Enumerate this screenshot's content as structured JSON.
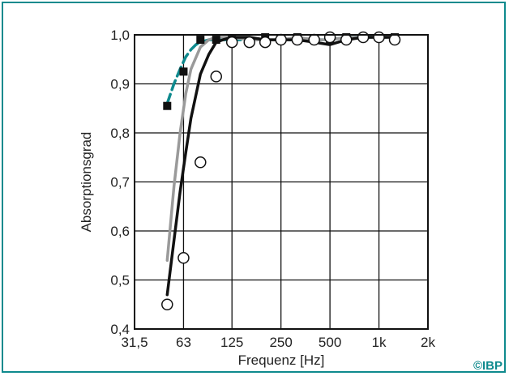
{
  "chart_data": {
    "type": "line",
    "xlabel": "Frequenz [Hz]",
    "ylabel": "Absorptionsgrad",
    "x_scale": "log2",
    "xlim": [
      31.5,
      2000
    ],
    "ylim": [
      0.4,
      1.0
    ],
    "x_ticks": [
      31.5,
      63,
      125,
      250,
      500,
      1000,
      2000
    ],
    "x_tick_labels": [
      "31,5",
      "63",
      "125",
      "250",
      "500",
      "1k",
      "2k"
    ],
    "y_ticks": [
      0.4,
      0.5,
      0.6,
      0.7,
      0.8,
      0.9,
      1.0
    ],
    "y_tick_labels": [
      "0,4",
      "0,5",
      "0,6",
      "0,7",
      "0,8",
      "0,9",
      "1,0"
    ],
    "grid": true,
    "series": [
      {
        "style": "line",
        "color": "#0f8a8e",
        "dashed": true,
        "x": [
          50,
          55,
          60,
          65,
          70,
          75,
          80,
          90,
          100,
          125,
          160,
          200,
          250,
          315,
          400,
          500,
          630,
          800,
          1000,
          1250
        ],
        "y": [
          0.86,
          0.9,
          0.93,
          0.955,
          0.97,
          0.98,
          0.985,
          0.99,
          0.99,
          0.99,
          0.99,
          0.99,
          0.99,
          0.99,
          0.99,
          0.99,
          0.995,
          0.995,
          0.995,
          0.995
        ]
      },
      {
        "style": "line",
        "color": "#9a9a9a",
        "x": [
          50,
          55,
          60,
          65,
          70,
          80,
          90,
          100,
          125,
          160,
          200,
          250,
          315,
          400,
          500,
          630,
          800,
          1000,
          1250
        ],
        "y": [
          0.54,
          0.69,
          0.8,
          0.88,
          0.93,
          0.975,
          0.99,
          0.995,
          0.995,
          0.99,
          0.99,
          0.99,
          0.995,
          0.99,
          0.99,
          0.995,
          0.995,
          0.995,
          0.995
        ]
      },
      {
        "style": "line",
        "color": "#111111",
        "x": [
          50,
          55,
          60,
          65,
          70,
          80,
          90,
          100,
          110,
          125,
          160,
          200,
          250,
          315,
          400,
          500,
          630,
          800,
          1000,
          1250
        ],
        "y": [
          0.47,
          0.58,
          0.68,
          0.76,
          0.83,
          0.92,
          0.96,
          0.985,
          0.99,
          0.995,
          0.995,
          0.99,
          0.99,
          0.99,
          0.985,
          0.98,
          0.99,
          0.995,
          0.995,
          0.995
        ]
      },
      {
        "style": "markers",
        "marker": "square",
        "color": "#111111",
        "x": [
          50,
          63,
          80,
          100,
          125,
          160,
          200,
          250,
          315,
          400,
          500,
          630,
          800,
          1000,
          1250
        ],
        "y": [
          0.855,
          0.925,
          0.99,
          0.99,
          0.99,
          0.985,
          0.995,
          0.99,
          0.995,
          0.99,
          0.99,
          0.995,
          0.995,
          0.995,
          0.995
        ]
      },
      {
        "style": "markers",
        "marker": "circle",
        "color": "#111111",
        "x": [
          50,
          63,
          80,
          100,
          125,
          160,
          200,
          250,
          315,
          400,
          500,
          630,
          800,
          1000,
          1250
        ],
        "y": [
          0.45,
          0.545,
          0.74,
          0.915,
          0.985,
          0.985,
          0.985,
          0.99,
          0.99,
          0.99,
          0.995,
          0.99,
          0.995,
          0.995,
          0.99
        ]
      }
    ]
  },
  "copyright": "©IBP"
}
